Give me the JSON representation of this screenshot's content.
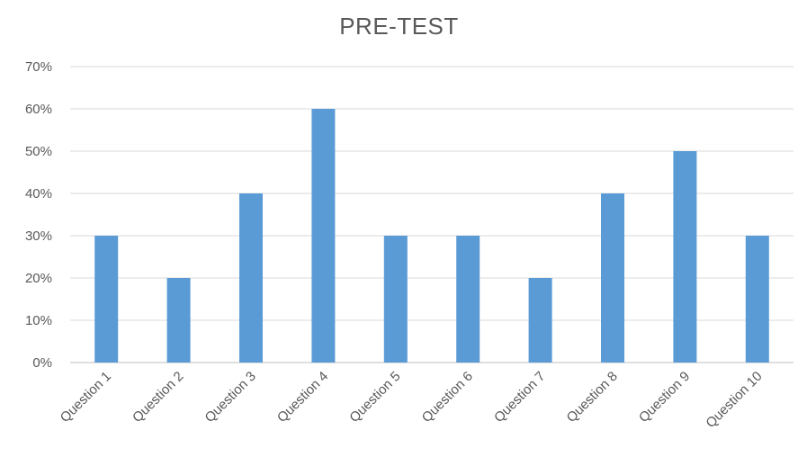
{
  "chart_data": {
    "type": "bar",
    "title": "PRE-TEST",
    "categories": [
      "Question 1",
      "Question 2",
      "Question 3",
      "Question 4",
      "Question 5",
      "Question 6",
      "Question 7",
      "Question 8",
      "Question 9",
      "Question 10"
    ],
    "values": [
      30,
      20,
      40,
      60,
      30,
      30,
      20,
      40,
      50,
      30
    ],
    "value_unit": "%",
    "ylim": [
      0,
      70
    ],
    "yticks": [
      "0%",
      "10%",
      "20%",
      "30%",
      "40%",
      "50%",
      "60%",
      "70%"
    ],
    "xlabel": "",
    "ylabel": "",
    "grid": true,
    "legend": "none",
    "bar_color": "#5b9bd5"
  }
}
